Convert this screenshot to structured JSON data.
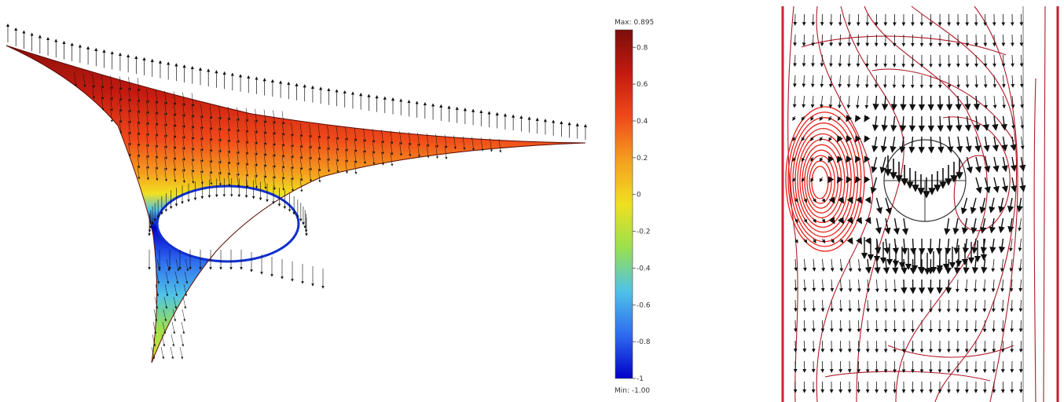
{
  "colorbar": {
    "max_label": "Max: 0.895",
    "min_label": "Min: -1.00",
    "ticks": [
      "0.8",
      "0.6",
      "0.4",
      "0.2",
      "0",
      "-0.2",
      "-0.4",
      "-0.6",
      "-0.8",
      "-1"
    ],
    "max_value": 0.895,
    "min_value": -1.0,
    "colors": [
      "#0000c8",
      "#2e6bf0",
      "#4fc3e8",
      "#9ae04f",
      "#f0e020",
      "#f5a020",
      "#f04a1a",
      "#c41a10",
      "#7a0e0a"
    ]
  },
  "colors": {
    "arrow": "#111111",
    "streamline": "#b01a2a",
    "vortex": "#e8201a",
    "frame": "#d0202a"
  }
}
